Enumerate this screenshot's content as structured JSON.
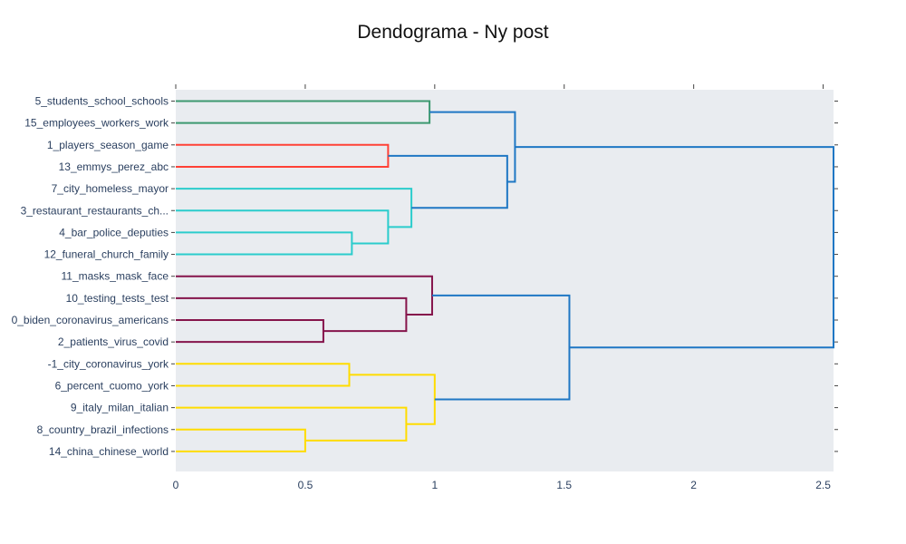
{
  "chart_data": {
    "type": "dendrogram",
    "title": "Dendograma - Ny post",
    "orientation": "horizontal",
    "xlabel": "",
    "ylabel": "",
    "xlim": [
      0,
      2.54
    ],
    "x_ticks": [
      0,
      0.5,
      1,
      1.5,
      2,
      2.5
    ],
    "x_tick_labels": [
      "0",
      "0.5",
      "1",
      "1.5",
      "2",
      "2.5"
    ],
    "leaves": [
      "5_students_school_schools",
      "15_employees_workers_work",
      "1_players_season_game",
      "13_emmys_perez_abc",
      "7_city_homeless_mayor",
      "3_restaurant_restaurants_ch...",
      "4_bar_police_deputies",
      "12_funeral_church_family",
      "11_masks_mask_face",
      "10_testing_tests_test",
      "0_biden_coronavirus_americans",
      "2_patients_virus_covid",
      "-1_city_coronavirus_york",
      "6_percent_cuomo_york",
      "9_italy_milan_italian",
      "8_country_brazil_infections",
      "14_china_chinese_world"
    ],
    "colors": {
      "background": "#e9ecf0",
      "green": "#3d9970",
      "red": "#ff4136",
      "cyan": "#2bcccc",
      "purple": "#85144b",
      "yellow": "#ffdc00",
      "blue": "#1f77c4"
    },
    "links": [
      {
        "a": 0,
        "b": 1,
        "height": 0.98,
        "color": "green"
      },
      {
        "a": 2,
        "b": 3,
        "height": 0.82,
        "color": "red"
      },
      {
        "a": 6,
        "b": 7,
        "height": 0.68,
        "color": "cyan"
      },
      {
        "a": 5,
        "b": "c2",
        "height": 0.82,
        "color": "cyan"
      },
      {
        "a": 4,
        "b": "c3",
        "height": 0.91,
        "color": "cyan"
      },
      {
        "a": "c1",
        "b": "c4",
        "height": 1.28,
        "color": "blue"
      },
      {
        "a": "c0",
        "b": "c5",
        "height": 1.31,
        "color": "blue"
      },
      {
        "a": 10,
        "b": 11,
        "height": 0.57,
        "color": "purple"
      },
      {
        "a": 9,
        "b": "c7",
        "height": 0.89,
        "color": "purple"
      },
      {
        "a": 8,
        "b": "c8",
        "height": 0.99,
        "color": "purple"
      },
      {
        "a": 12,
        "b": 13,
        "height": 0.67,
        "color": "yellow"
      },
      {
        "a": 15,
        "b": 16,
        "height": 0.5,
        "color": "yellow"
      },
      {
        "a": 14,
        "b": "c11",
        "height": 0.89,
        "color": "yellow"
      },
      {
        "a": "c10",
        "b": "c12",
        "height": 1.0,
        "color": "yellow"
      },
      {
        "a": "c9",
        "b": "c13",
        "height": 1.52,
        "color": "blue"
      },
      {
        "a": "c6",
        "b": "c14",
        "height": 2.54,
        "color": "blue"
      }
    ]
  }
}
